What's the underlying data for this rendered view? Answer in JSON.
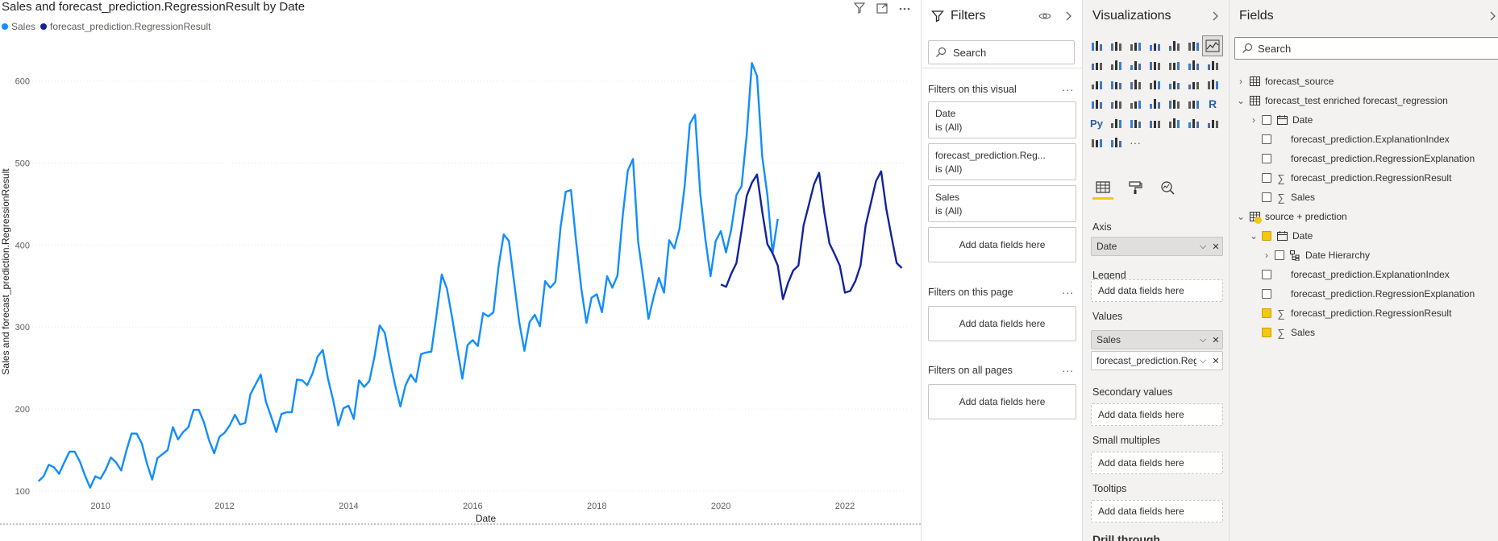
{
  "chart": {
    "title": "Sales and forecast_prediction.RegressionResult by Date",
    "legend": [
      {
        "name": "Sales",
        "color": "#118DFF"
      },
      {
        "name": "forecast_prediction.RegressionResult",
        "color": "#12239E"
      }
    ],
    "icons": [
      "filter-icon",
      "focus-mode-icon",
      "more-options-icon"
    ]
  },
  "chart_data": {
    "type": "line",
    "title": "Sales and forecast_prediction.RegressionResult by Date",
    "xlabel": "Date",
    "ylabel": "Sales and forecast_prediction.RegressionResult",
    "xlim": [
      2008.9,
      2023.0
    ],
    "ylim": [
      95,
      640
    ],
    "x_ticks": [
      2010,
      2012,
      2014,
      2016,
      2018,
      2020,
      2022
    ],
    "y_ticks": [
      100,
      200,
      300,
      400,
      500,
      600
    ],
    "grid": true,
    "legend_position": "top-left",
    "series": [
      {
        "name": "Sales",
        "color": "#118DFF",
        "x_start": 2009.0,
        "step": 0.08333,
        "values": [
          112,
          118,
          132,
          129,
          121,
          135,
          148,
          148,
          136,
          119,
          104,
          118,
          115,
          126,
          141,
          135,
          125,
          149,
          170,
          170,
          158,
          133,
          114,
          140,
          145,
          150,
          178,
          163,
          172,
          178,
          199,
          199,
          184,
          162,
          146,
          166,
          171,
          180,
          193,
          181,
          183,
          218,
          230,
          242,
          209,
          191,
          172,
          194,
          196,
          196,
          236,
          235,
          229,
          243,
          264,
          272,
          237,
          211,
          180,
          201,
          204,
          188,
          235,
          227,
          234,
          264,
          302,
          293,
          259,
          229,
          203,
          229,
          242,
          233,
          267,
          269,
          270,
          315,
          364,
          347,
          312,
          274,
          237,
          278,
          284,
          277,
          317,
          313,
          318,
          374,
          413,
          405,
          355,
          306,
          271,
          306,
          315,
          301,
          356,
          348,
          355,
          422,
          465,
          467,
          404,
          347,
          305,
          336,
          340,
          318,
          362,
          348,
          363,
          435,
          491,
          505,
          404,
          359,
          310,
          337,
          360,
          342,
          406,
          396,
          420,
          472,
          548,
          559,
          463,
          407,
          362,
          405,
          417,
          391,
          419,
          461,
          472,
          535,
          622,
          606,
          508,
          461,
          390,
          432
        ]
      },
      {
        "name": "forecast_prediction.RegressionResult",
        "color": "#12239E",
        "x_start": 2020.0,
        "step": 0.08333,
        "values": [
          352,
          349,
          365,
          378,
          418,
          460,
          476,
          486,
          441,
          401,
          390,
          375,
          334,
          354,
          369,
          375,
          424,
          449,
          474,
          488,
          440,
          402,
          389,
          375,
          342,
          344,
          356,
          375,
          424,
          451,
          478,
          490,
          444,
          410,
          378,
          372
        ]
      }
    ]
  },
  "filters": {
    "title": "Filters",
    "search_placeholder": "Search",
    "on_visual_label": "Filters on this visual",
    "more": "...",
    "cards": [
      {
        "field": "Date",
        "state": "is (All)"
      },
      {
        "field": "forecast_prediction.Reg...",
        "state": "is (All)"
      },
      {
        "field": "Sales",
        "state": "is (All)"
      }
    ],
    "add_label": "Add data fields here",
    "on_page_label": "Filters on this page",
    "all_pages_label": "Filters on all pages"
  },
  "visualizations": {
    "title": "Visualizations",
    "wells": {
      "axis": "Axis",
      "axis_field": "Date",
      "legend": "Legend",
      "values": "Values",
      "values_fields": [
        "Sales",
        "forecast_prediction.Regr"
      ],
      "secondary": "Secondary values",
      "small_multiples": "Small multiples",
      "tooltips": "Tooltips",
      "add_label": "Add data fields here",
      "drillthrough": "Drill through"
    }
  },
  "fields": {
    "title": "Fields",
    "search_placeholder": "Search",
    "tables": [
      {
        "name": "forecast_source"
      },
      {
        "name": "forecast_test enriched forecast_regression"
      },
      {
        "name": "source + prediction"
      }
    ],
    "items": {
      "t2_date": "Date",
      "t2_expl_index": "forecast_prediction.ExplanationIndex",
      "t2_reg_expl": "forecast_prediction.RegressionExplanation",
      "t2_reg_result": "forecast_prediction.RegressionResult",
      "t2_sales": "Sales",
      "t3_date": "Date",
      "t3_hierarchy": "Date Hierarchy",
      "t3_expl_index": "forecast_prediction.ExplanationIndex",
      "t3_reg_expl": "forecast_prediction.RegressionExplanation",
      "t3_reg_result": "forecast_prediction.RegressionResult",
      "t3_sales": "Sales"
    }
  }
}
